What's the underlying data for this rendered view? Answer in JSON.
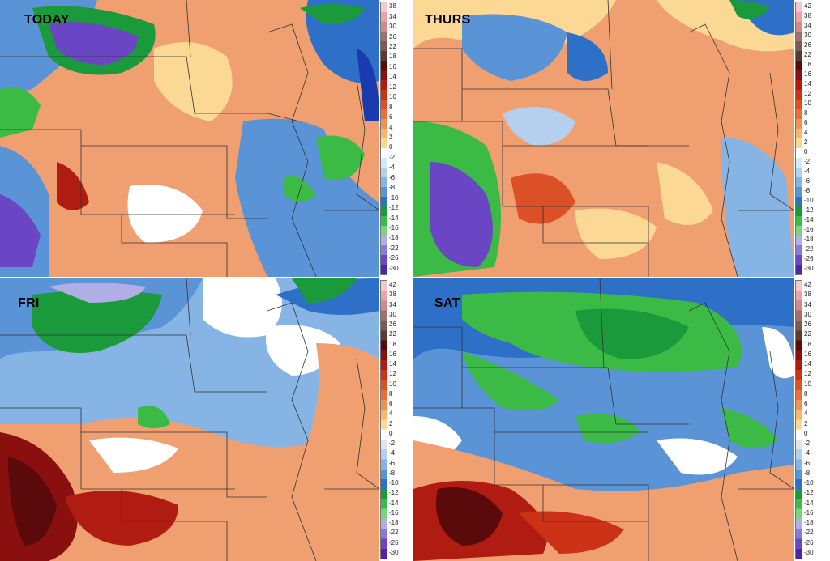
{
  "panels": [
    {
      "label": "TODAY"
    },
    {
      "label": "THURS"
    },
    {
      "label": "FRI"
    },
    {
      "label": "SAT"
    }
  ],
  "colorbar": {
    "ticks_panel_today": [
      "38",
      "34",
      "30",
      "26",
      "22",
      "18",
      "16",
      "14",
      "12",
      "10",
      "8",
      "6",
      "4",
      "2",
      "0",
      "-2",
      "-4",
      "-6",
      "-8",
      "-10",
      "-12",
      "-14",
      "-16",
      "-18",
      "-22",
      "-26",
      "-30"
    ],
    "ticks_panel_thurs": [
      "42",
      "38",
      "34",
      "30",
      "26",
      "22",
      "18",
      "16",
      "14",
      "12",
      "10",
      "8",
      "6",
      "4",
      "2",
      "0",
      "-2",
      "-4",
      "-6",
      "-8",
      "-10",
      "-12",
      "-14",
      "-16",
      "-18",
      "-22",
      "-26",
      "-30"
    ],
    "ticks_panel_fri": [
      "42",
      "38",
      "34",
      "30",
      "26",
      "22",
      "18",
      "16",
      "14",
      "12",
      "10",
      "8",
      "6",
      "4",
      "2",
      "0",
      "-2",
      "-4",
      "-6",
      "-8",
      "-10",
      "-12",
      "-14",
      "-16",
      "-18",
      "-22",
      "-26",
      "-30"
    ],
    "ticks_panel_sat": [
      "42",
      "38",
      "34",
      "30",
      "26",
      "22",
      "18",
      "16",
      "14",
      "12",
      "10",
      "8",
      "6",
      "4",
      "2",
      "0",
      "-2",
      "-4",
      "-6",
      "-8",
      "-10",
      "-12",
      "-14",
      "-16",
      "-18",
      "-22",
      "-26",
      "-30"
    ],
    "colors": [
      "#f6c6d0",
      "#e9a2a8",
      "#d08a8c",
      "#a07070",
      "#7a5a55",
      "#5a3a35",
      "#5a0a0a",
      "#8a1010",
      "#b01c12",
      "#cc3218",
      "#dc5028",
      "#e6703a",
      "#ef9450",
      "#f6b870",
      "#fbd894",
      "#ffffff",
      "#d8e8f6",
      "#b4d0ee",
      "#86b4e4",
      "#5a94d6",
      "#2e70c8",
      "#1a9a3a",
      "#3cba46",
      "#7cd47a",
      "#b0aee4",
      "#8c78d8",
      "#6a46c4",
      "#5024a8"
    ]
  }
}
